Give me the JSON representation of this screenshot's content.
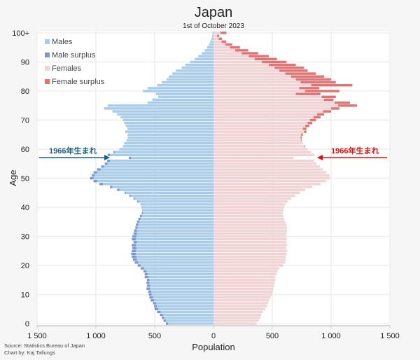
{
  "header": {
    "title": "Japan",
    "subtitle": "1st of October 2023"
  },
  "footer": {
    "source": "Source: Statistics Bureau of Japan",
    "credit": "Chart by: Kaj Tallungs"
  },
  "legend": [
    {
      "label": "Males",
      "color": "#a9cce8"
    },
    {
      "label": "Male surplus",
      "color": "#7b98cf"
    },
    {
      "label": "Females",
      "color": "#f0d3d5"
    },
    {
      "label": "Female surplus",
      "color": "#e07474"
    }
  ],
  "annotations": {
    "left": {
      "label": "1966年生まれ",
      "color": "#1d5f80",
      "age": 57
    },
    "right": {
      "label": "1966年生まれ",
      "color": "#e01010",
      "age": 57
    }
  },
  "chart_data": {
    "type": "bar",
    "orientation": "horizontal-population-pyramid",
    "title": "Japan",
    "subtitle": "1st of October 2023",
    "xlabel": "Population",
    "ylabel": "Age",
    "units": "thousands",
    "xlim": [
      -1500,
      1500
    ],
    "x_ticks": [
      -1500,
      -1000,
      -500,
      0,
      500,
      1000,
      1500
    ],
    "x_tick_labels": [
      "1 500",
      "1 000",
      "500",
      "0",
      "500",
      "1 000",
      "1 500"
    ],
    "y_ticks": [
      0,
      10,
      20,
      30,
      40,
      50,
      60,
      70,
      80,
      90,
      100
    ],
    "y_tick_labels": [
      "0",
      "10",
      "20",
      "30",
      "40",
      "50",
      "60",
      "70",
      "80",
      "90",
      "100+"
    ],
    "legend_position": "top-left",
    "grid": true,
    "categories": [
      "0",
      "1",
      "2",
      "3",
      "4",
      "5",
      "6",
      "7",
      "8",
      "9",
      "10",
      "11",
      "12",
      "13",
      "14",
      "15",
      "16",
      "17",
      "18",
      "19",
      "20",
      "21",
      "22",
      "23",
      "24",
      "25",
      "26",
      "27",
      "28",
      "29",
      "30",
      "31",
      "32",
      "33",
      "34",
      "35",
      "36",
      "37",
      "38",
      "39",
      "40",
      "41",
      "42",
      "43",
      "44",
      "45",
      "46",
      "47",
      "48",
      "49",
      "50",
      "51",
      "52",
      "53",
      "54",
      "55",
      "56",
      "57",
      "58",
      "59",
      "60",
      "61",
      "62",
      "63",
      "64",
      "65",
      "66",
      "67",
      "68",
      "69",
      "70",
      "71",
      "72",
      "73",
      "74",
      "75",
      "76",
      "77",
      "78",
      "79",
      "80",
      "81",
      "82",
      "83",
      "84",
      "85",
      "86",
      "87",
      "88",
      "89",
      "90",
      "91",
      "92",
      "93",
      "94",
      "95",
      "96",
      "97",
      "98",
      "99",
      "100+"
    ],
    "series": [
      {
        "name": "Males",
        "values": [
          385,
          405,
          420,
          430,
          450,
          470,
          480,
          490,
          505,
          515,
          525,
          530,
          540,
          540,
          545,
          545,
          555,
          560,
          570,
          590,
          620,
          640,
          650,
          655,
          660,
          660,
          655,
          660,
          650,
          660,
          655,
          650,
          650,
          645,
          640,
          630,
          620,
          610,
          600,
          600,
          605,
          615,
          640,
          670,
          705,
          745,
          800,
          860,
          940,
          990,
          1020,
          1010,
          990,
          960,
          930,
          900,
          880,
          700,
          880,
          840,
          800,
          770,
          760,
          740,
          730,
          730,
          750,
          730,
          745,
          760,
          770,
          790,
          820,
          860,
          930,
          900,
          560,
          520,
          470,
          490,
          600,
          560,
          480,
          440,
          400,
          380,
          350,
          320,
          270,
          240,
          200,
          160,
          130,
          100,
          75,
          55,
          40,
          28,
          18,
          12,
          10
        ]
      },
      {
        "name": "Females",
        "values": [
          365,
          385,
          400,
          405,
          420,
          440,
          455,
          465,
          475,
          485,
          500,
          505,
          510,
          515,
          520,
          525,
          525,
          535,
          545,
          560,
          595,
          610,
          615,
          615,
          620,
          625,
          620,
          625,
          620,
          625,
          620,
          620,
          625,
          625,
          620,
          610,
          600,
          595,
          590,
          595,
          600,
          610,
          630,
          660,
          695,
          735,
          780,
          840,
          910,
          960,
          990,
          985,
          960,
          930,
          905,
          875,
          855,
          680,
          860,
          830,
          800,
          775,
          760,
          745,
          740,
          745,
          770,
          760,
          780,
          800,
          820,
          850,
          880,
          930,
          1000,
          1060,
          1030,
          940,
          920,
          700,
          780,
          730,
          830,
          740,
          700,
          660,
          610,
          560,
          520,
          470,
          410,
          350,
          300,
          240,
          185,
          140,
          100,
          68,
          45,
          30,
          60
        ]
      },
      {
        "name": "Male surplus",
        "values": [
          20,
          20,
          20,
          25,
          30,
          30,
          25,
          25,
          30,
          30,
          25,
          25,
          30,
          25,
          25,
          20,
          30,
          25,
          25,
          30,
          25,
          30,
          35,
          40,
          40,
          35,
          35,
          35,
          30,
          35,
          35,
          30,
          25,
          20,
          20,
          20,
          20,
          15,
          10,
          5,
          5,
          5,
          10,
          10,
          10,
          10,
          20,
          20,
          30,
          30,
          30,
          25,
          30,
          30,
          25,
          25,
          25,
          20,
          20,
          10,
          0,
          0,
          0,
          0,
          0,
          0,
          0,
          0,
          0,
          0,
          0,
          0,
          0,
          0,
          0,
          0,
          0,
          0,
          0,
          0,
          0,
          0,
          0,
          0,
          0,
          0,
          0,
          0,
          0,
          0,
          0,
          0,
          0,
          0,
          0,
          0,
          0,
          0,
          0,
          0,
          0
        ]
      },
      {
        "name": "Female surplus",
        "values": [
          0,
          0,
          0,
          0,
          0,
          0,
          0,
          0,
          0,
          0,
          0,
          0,
          0,
          0,
          0,
          0,
          0,
          0,
          0,
          0,
          0,
          0,
          0,
          0,
          0,
          0,
          0,
          0,
          0,
          0,
          0,
          0,
          0,
          0,
          0,
          0,
          0,
          0,
          0,
          0,
          0,
          0,
          0,
          0,
          0,
          0,
          0,
          0,
          0,
          0,
          0,
          0,
          0,
          0,
          0,
          0,
          0,
          0,
          0,
          0,
          0,
          5,
          0,
          5,
          10,
          15,
          20,
          30,
          35,
          40,
          50,
          60,
          60,
          70,
          70,
          160,
          130,
          80,
          120,
          210,
          290,
          170,
          350,
          300,
          300,
          280,
          260,
          240,
          250,
          230,
          210,
          190,
          170,
          140,
          110,
          85,
          60,
          40,
          27,
          18,
          50
        ]
      }
    ],
    "annotation_text": "1966年生まれ",
    "annotation_age": 57
  }
}
